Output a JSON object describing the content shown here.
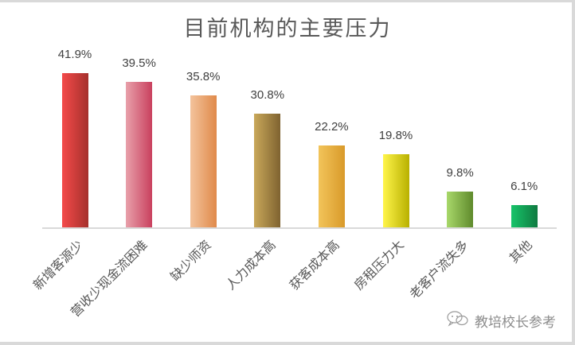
{
  "chart_data": {
    "type": "bar",
    "title": "目前机构的主要压力",
    "xlabel": "",
    "ylabel": "",
    "ylim": [
      0,
      45
    ],
    "grid": false,
    "legend": "none",
    "categories": [
      "新增客源少",
      "营收少现金流困难",
      "缺少师资",
      "人力成本高",
      "获客成本高",
      "房租压力大",
      "老客户流失多",
      "其他"
    ],
    "values": [
      41.9,
      39.5,
      35.8,
      30.8,
      22.2,
      19.8,
      9.8,
      6.1
    ],
    "value_labels": [
      "41.9%",
      "39.5%",
      "35.8%",
      "30.8%",
      "22.2%",
      "19.8%",
      "9.8%",
      "6.1%"
    ],
    "colors": [
      [
        "#f44a4a",
        "#a5302c"
      ],
      [
        "#e8a0aa",
        "#c9405e"
      ],
      [
        "#f3c39c",
        "#e08a4a"
      ],
      [
        "#c9a85a",
        "#7f6330"
      ],
      [
        "#f2c45a",
        "#d99a2a"
      ],
      [
        "#fff54a",
        "#b8b000"
      ],
      [
        "#a8d86a",
        "#5f8a2c"
      ],
      [
        "#17c46a",
        "#0f7a40"
      ]
    ]
  },
  "watermark": {
    "icon": "wechat-icon",
    "text": "教培校长参考"
  }
}
